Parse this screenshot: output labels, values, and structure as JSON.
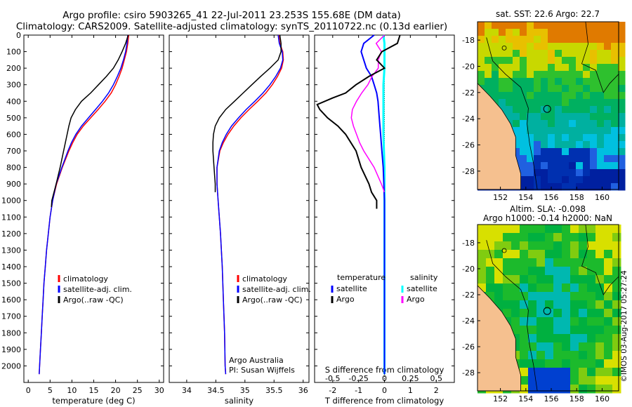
{
  "header": {
    "title_line1": "Argo profile: csiro 5903265_41 22-Jul-2011 23.253S 155.68E (DM data)",
    "title_line2": "Climatology: CARS2009. Satellite-adjusted climatology: synTS_20110722.nc (0.13d earlier)"
  },
  "colors": {
    "clim": "#ff0000",
    "sat": "#0000ff",
    "argo": "#000000",
    "sal_sat": "#00ffff",
    "sal_argo": "#ff00ff",
    "land": "#f5c08f"
  },
  "chart_data": [
    {
      "id": "temperature",
      "type": "line",
      "xlabel": "temperature (deg C)",
      "ylabel": "",
      "xlim": [
        -1,
        31
      ],
      "ylim": [
        0,
        2100
      ],
      "xticks": [
        0,
        5,
        10,
        15,
        20,
        25,
        30
      ],
      "yticks": [
        0,
        100,
        200,
        300,
        400,
        500,
        600,
        700,
        800,
        900,
        1000,
        1100,
        1200,
        1300,
        1400,
        1500,
        1600,
        1700,
        1800,
        1900,
        2000
      ],
      "legend": [
        "climatology",
        "satellite-adj. clim.",
        "Argo(..raw -QC)"
      ],
      "series": [
        {
          "name": "climatology",
          "depth": [
            0,
            50,
            100,
            150,
            200,
            250,
            300,
            350,
            400,
            450,
            500,
            550,
            600,
            650,
            700,
            800,
            900,
            1000,
            1100,
            1200,
            1300,
            1400,
            1500,
            1600,
            1700,
            1800,
            1900,
            2000,
            2050
          ],
          "values": [
            23.0,
            22.8,
            22.5,
            22.0,
            21.5,
            20.8,
            20.0,
            19.0,
            17.6,
            16.0,
            14.3,
            12.6,
            11.2,
            10.2,
            9.3,
            7.8,
            6.5,
            5.6,
            5.0,
            4.6,
            4.2,
            3.9,
            3.6,
            3.4,
            3.2,
            3.0,
            2.8,
            2.6,
            2.5
          ]
        },
        {
          "name": "satellite-adj. clim.",
          "depth": [
            0,
            50,
            100,
            150,
            200,
            250,
            300,
            350,
            400,
            450,
            500,
            550,
            600,
            650,
            700,
            800,
            900,
            1000,
            1100,
            1200,
            1300,
            1400,
            1500,
            1600,
            1700,
            1800,
            1900,
            2000,
            2050
          ],
          "values": [
            22.8,
            22.6,
            22.3,
            21.8,
            21.2,
            20.4,
            19.5,
            18.4,
            17.0,
            15.4,
            13.8,
            12.2,
            10.9,
            9.9,
            9.1,
            7.7,
            6.4,
            5.6,
            5.0,
            4.6,
            4.2,
            3.9,
            3.6,
            3.4,
            3.2,
            3.0,
            2.8,
            2.6,
            2.5
          ]
        },
        {
          "name": "Argo(..raw -QC)",
          "depth": [
            0,
            50,
            100,
            150,
            200,
            250,
            300,
            350,
            400,
            450,
            500,
            550,
            600,
            700,
            800,
            900,
            1000,
            1040
          ],
          "values": [
            22.9,
            22.3,
            21.5,
            20.6,
            19.5,
            17.9,
            16.1,
            14.3,
            12.2,
            10.8,
            9.8,
            9.3,
            8.9,
            8.1,
            7.3,
            6.4,
            5.4,
            5.3
          ]
        }
      ]
    },
    {
      "id": "salinity",
      "type": "line",
      "xlabel": "salinity",
      "xlim": [
        33.7,
        36.1
      ],
      "ylim": [
        0,
        2100
      ],
      "xticks": [
        34,
        34.5,
        35,
        35.5,
        36
      ],
      "legend": [
        "climatology",
        "satellite-adj. clim.",
        "Argo(..raw -QC)"
      ],
      "series": [
        {
          "name": "climatology",
          "depth": [
            0,
            50,
            100,
            150,
            200,
            250,
            300,
            350,
            400,
            450,
            500,
            550,
            600,
            650,
            700,
            800,
            900,
            1000,
            1200,
            1400,
            1600,
            1800,
            2000,
            2050
          ],
          "values": [
            35.58,
            35.6,
            35.65,
            35.66,
            35.63,
            35.56,
            35.47,
            35.36,
            35.22,
            35.07,
            34.93,
            34.81,
            34.71,
            34.63,
            34.57,
            34.52,
            34.52,
            34.54,
            34.58,
            34.61,
            34.63,
            34.65,
            34.66,
            34.67
          ]
        },
        {
          "name": "satellite-adj. clim.",
          "depth": [
            0,
            50,
            100,
            150,
            200,
            250,
            300,
            350,
            400,
            450,
            500,
            550,
            600,
            650,
            700,
            800,
            900,
            1000,
            1200,
            1400,
            1600,
            1800,
            2000,
            2050
          ],
          "values": [
            35.57,
            35.59,
            35.64,
            35.65,
            35.61,
            35.53,
            35.43,
            35.31,
            35.17,
            35.02,
            34.89,
            34.77,
            34.68,
            34.61,
            34.56,
            34.52,
            34.52,
            34.54,
            34.58,
            34.61,
            34.63,
            34.65,
            34.66,
            34.67
          ]
        },
        {
          "name": "Argo(..raw -QC)",
          "depth": [
            0,
            50,
            100,
            150,
            200,
            250,
            300,
            350,
            400,
            450,
            500,
            550,
            600,
            650,
            700,
            800,
            900,
            950
          ],
          "values": [
            35.6,
            35.62,
            35.62,
            35.57,
            35.43,
            35.27,
            35.12,
            34.97,
            34.82,
            34.67,
            34.56,
            34.49,
            34.46,
            34.45,
            34.45,
            34.47,
            34.49,
            34.49
          ]
        }
      ],
      "annotation": [
        "Argo Australia",
        "PI: Susan Wijffels"
      ]
    },
    {
      "id": "difference",
      "type": "line",
      "xlabel": "T difference from climatology",
      "xlabel_top": "S difference from climatology",
      "xlim": [
        -2.7,
        2.7
      ],
      "ylim": [
        0,
        2100
      ],
      "xticks": [
        -2,
        -1,
        0,
        1,
        2
      ],
      "xticks_s": [
        "-0.5",
        "-0.25",
        "0",
        "0.25",
        "0.5"
      ],
      "legend_t": {
        "title": "temperature",
        "items": [
          "satellite",
          "Argo"
        ]
      },
      "legend_s": {
        "title": "salinity",
        "items": [
          "satellite",
          "Argo"
        ]
      },
      "series": [
        {
          "name": "temperature satellite",
          "depth": [
            0,
            50,
            100,
            150,
            200,
            250,
            300,
            350,
            400,
            500,
            600,
            700,
            800,
            1000,
            1200,
            1400,
            1600,
            1800,
            2000,
            2050
          ],
          "values": [
            -0.4,
            -0.8,
            -0.9,
            -0.8,
            -0.7,
            -0.5,
            -0.4,
            -0.3,
            -0.25,
            -0.2,
            -0.15,
            -0.1,
            -0.05,
            0,
            0,
            0,
            0,
            0,
            0,
            0
          ]
        },
        {
          "name": "temperature Argo",
          "depth": [
            0,
            50,
            100,
            150,
            200,
            250,
            300,
            350,
            380,
            420,
            450,
            500,
            550,
            600,
            650,
            700,
            800,
            900,
            950,
            1000,
            1050
          ],
          "values": [
            0.6,
            0.5,
            -0.1,
            -0.3,
            0,
            -0.6,
            -1.1,
            -1.5,
            -2.0,
            -2.6,
            -2.5,
            -2.2,
            -1.8,
            -1.5,
            -1.3,
            -1.1,
            -0.9,
            -0.6,
            -0.5,
            -0.3,
            -0.3
          ]
        },
        {
          "name": "salinity satellite",
          "depth": [
            0,
            50,
            100,
            200,
            300,
            400,
            600,
            800,
            1000,
            1200,
            1400,
            1600,
            1800,
            2000,
            2050
          ],
          "values": [
            -0.01,
            0,
            0,
            0,
            -0.01,
            -0.01,
            -0.01,
            0,
            0,
            0,
            0,
            0,
            0,
            0,
            0
          ]
        },
        {
          "name": "salinity Argo",
          "depth": [
            0,
            50,
            100,
            150,
            200,
            250,
            300,
            350,
            400,
            450,
            500,
            550,
            600,
            650,
            700,
            800,
            900,
            950
          ],
          "values": [
            0,
            -0.08,
            -0.03,
            -0.06,
            -0.06,
            -0.12,
            -0.16,
            -0.22,
            -0.27,
            -0.31,
            -0.32,
            -0.3,
            -0.27,
            -0.24,
            -0.2,
            -0.1,
            -0.03,
            0
          ]
        }
      ]
    },
    {
      "id": "sst_map",
      "type": "heatmap",
      "title": "sat. SST: 22.6  Argo: 22.7",
      "xticks": [
        "152",
        "154",
        "156",
        "158",
        "160"
      ],
      "yticks": [
        "-18",
        "-20",
        "-22",
        "-24",
        "-26",
        "-28"
      ],
      "xlim": [
        150.2,
        161.3
      ],
      "ylim": [
        -29.4,
        -16.6
      ],
      "marker": {
        "lon": 155.68,
        "lat": -23.253
      }
    },
    {
      "id": "sla_map",
      "type": "heatmap",
      "title_line1": "Altim. SLA: -0.098",
      "title_line2": "Argo h1000: -0.14 h2000: NaN",
      "xticks": [
        "152",
        "154",
        "156",
        "158",
        "160"
      ],
      "yticks": [
        "-18",
        "-20",
        "-22",
        "-24",
        "-26",
        "-28"
      ],
      "xlim": [
        150.2,
        161.3
      ],
      "ylim": [
        -29.4,
        -16.6
      ],
      "marker": {
        "lon": 155.68,
        "lat": -23.253
      }
    }
  ],
  "footer": {
    "stamp": "©IMOS 03-Aug-2017 05:27:24"
  }
}
